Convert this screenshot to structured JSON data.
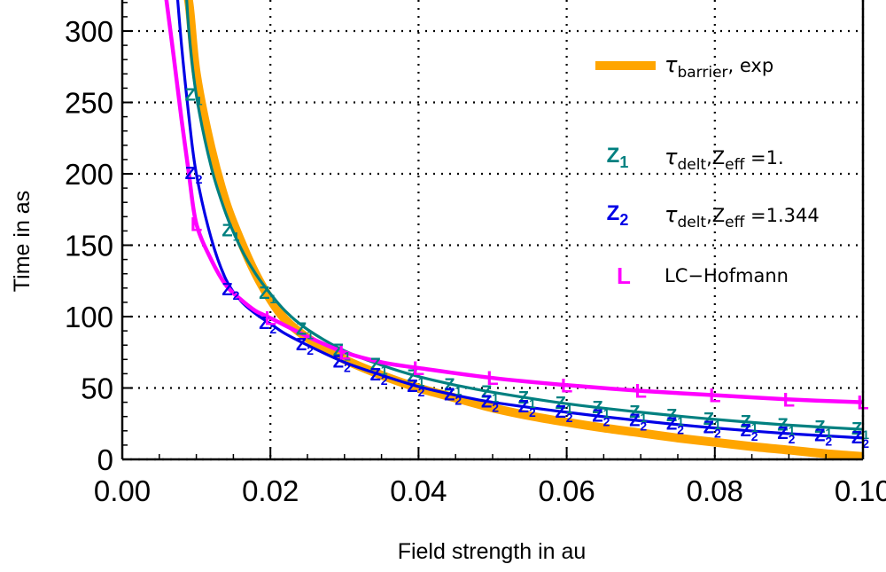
{
  "chart_data": {
    "type": "line",
    "title": "",
    "xlabel": "Field strength in au",
    "ylabel": "Time in as",
    "xlim": [
      0.0,
      0.1
    ],
    "ylim": [
      0,
      340
    ],
    "x_ticks": [
      "0.00",
      "0.02",
      "0.04",
      "0.06",
      "0.08",
      "0.10"
    ],
    "y_ticks": [
      "0",
      "50",
      "100",
      "150",
      "200",
      "250",
      "300"
    ],
    "grid": true,
    "legend_position": "right",
    "series": [
      {
        "name": "τ_barrier, exp",
        "legend": {
          "main": "τ",
          "sub": "barrier",
          "rest": ", exp"
        },
        "color": "#ffa500",
        "marker": "",
        "points": [
          [
            0.008,
            340
          ],
          [
            0.009,
            320
          ],
          [
            0.01,
            270
          ],
          [
            0.012,
            218
          ],
          [
            0.014,
            180
          ],
          [
            0.016,
            153
          ],
          [
            0.018,
            130
          ],
          [
            0.02,
            112
          ],
          [
            0.022,
            98
          ],
          [
            0.025,
            85
          ],
          [
            0.03,
            70
          ],
          [
            0.035,
            59
          ],
          [
            0.04,
            50
          ],
          [
            0.045,
            43
          ],
          [
            0.05,
            36
          ],
          [
            0.055,
            30.5
          ],
          [
            0.06,
            26
          ],
          [
            0.065,
            22
          ],
          [
            0.07,
            18.5
          ],
          [
            0.075,
            15
          ],
          [
            0.08,
            12
          ],
          [
            0.085,
            9
          ],
          [
            0.09,
            6.5
          ],
          [
            0.095,
            4
          ],
          [
            0.1,
            2
          ]
        ]
      },
      {
        "name": "τ_delt, Z_eff =1.",
        "legend": {
          "main": "τ",
          "sub": "delt",
          "rest": ",Z",
          "sub2": "eff",
          "rest2": " =1."
        },
        "color": "#008080",
        "marker": "Z",
        "marker_sub": "1",
        "points": [
          [
            0.0085,
            340
          ],
          [
            0.009,
            300
          ],
          [
            0.01,
            255
          ],
          [
            0.012,
            205
          ],
          [
            0.014,
            172
          ],
          [
            0.016,
            148
          ],
          [
            0.018,
            130
          ],
          [
            0.02,
            116
          ],
          [
            0.022,
            104
          ],
          [
            0.025,
            91
          ],
          [
            0.03,
            76
          ],
          [
            0.035,
            66
          ],
          [
            0.04,
            58
          ],
          [
            0.045,
            52
          ],
          [
            0.05,
            47
          ],
          [
            0.06,
            39
          ],
          [
            0.07,
            33
          ],
          [
            0.08,
            28
          ],
          [
            0.09,
            24
          ],
          [
            0.1,
            21
          ]
        ],
        "marker_x": [
          0.01,
          0.015,
          0.02,
          0.025,
          0.03,
          0.035,
          0.04,
          0.045,
          0.05,
          0.055,
          0.06,
          0.065,
          0.07,
          0.075,
          0.08,
          0.085,
          0.09,
          0.095,
          0.1
        ]
      },
      {
        "name": "τ_delt, Z_eff =1.344",
        "legend": {
          "main": "τ",
          "sub": "delt",
          "rest": ",Z",
          "sub2": "eff",
          "rest2": " =1.344"
        },
        "color": "#0000e6",
        "marker": "Z",
        "marker_sub": "2",
        "points": [
          [
            0.0072,
            340
          ],
          [
            0.008,
            290
          ],
          [
            0.009,
            240
          ],
          [
            0.01,
            200
          ],
          [
            0.012,
            155
          ],
          [
            0.014,
            126
          ],
          [
            0.016,
            111
          ],
          [
            0.018,
            102
          ],
          [
            0.02,
            95
          ],
          [
            0.022,
            88
          ],
          [
            0.025,
            80
          ],
          [
            0.03,
            68
          ],
          [
            0.035,
            59
          ],
          [
            0.04,
            51
          ],
          [
            0.045,
            45
          ],
          [
            0.05,
            40
          ],
          [
            0.06,
            33
          ],
          [
            0.07,
            27
          ],
          [
            0.08,
            22
          ],
          [
            0.09,
            18
          ],
          [
            0.1,
            15
          ]
        ],
        "marker_x": [
          0.01,
          0.015,
          0.02,
          0.025,
          0.03,
          0.035,
          0.04,
          0.045,
          0.05,
          0.055,
          0.06,
          0.065,
          0.07,
          0.075,
          0.08,
          0.085,
          0.09,
          0.095,
          0.1
        ]
      },
      {
        "name": "LC-Hofmann",
        "legend": {
          "main": "LC−Hofmann"
        },
        "color": "#ff00ff",
        "marker": "L",
        "points": [
          [
            0.0055,
            340
          ],
          [
            0.006,
            320
          ],
          [
            0.007,
            280
          ],
          [
            0.008,
            238
          ],
          [
            0.009,
            200
          ],
          [
            0.01,
            165
          ],
          [
            0.012,
            140
          ],
          [
            0.014,
            122
          ],
          [
            0.016,
            112
          ],
          [
            0.018,
            104
          ],
          [
            0.02,
            99
          ],
          [
            0.025,
            86
          ],
          [
            0.03,
            75
          ],
          [
            0.035,
            68
          ],
          [
            0.04,
            64
          ],
          [
            0.05,
            57
          ],
          [
            0.06,
            52
          ],
          [
            0.07,
            48
          ],
          [
            0.08,
            45
          ],
          [
            0.09,
            42
          ],
          [
            0.1,
            40
          ]
        ],
        "marker_x": [
          0.01,
          0.02,
          0.03,
          0.04,
          0.05,
          0.06,
          0.07,
          0.08,
          0.09,
          0.1
        ]
      }
    ]
  }
}
